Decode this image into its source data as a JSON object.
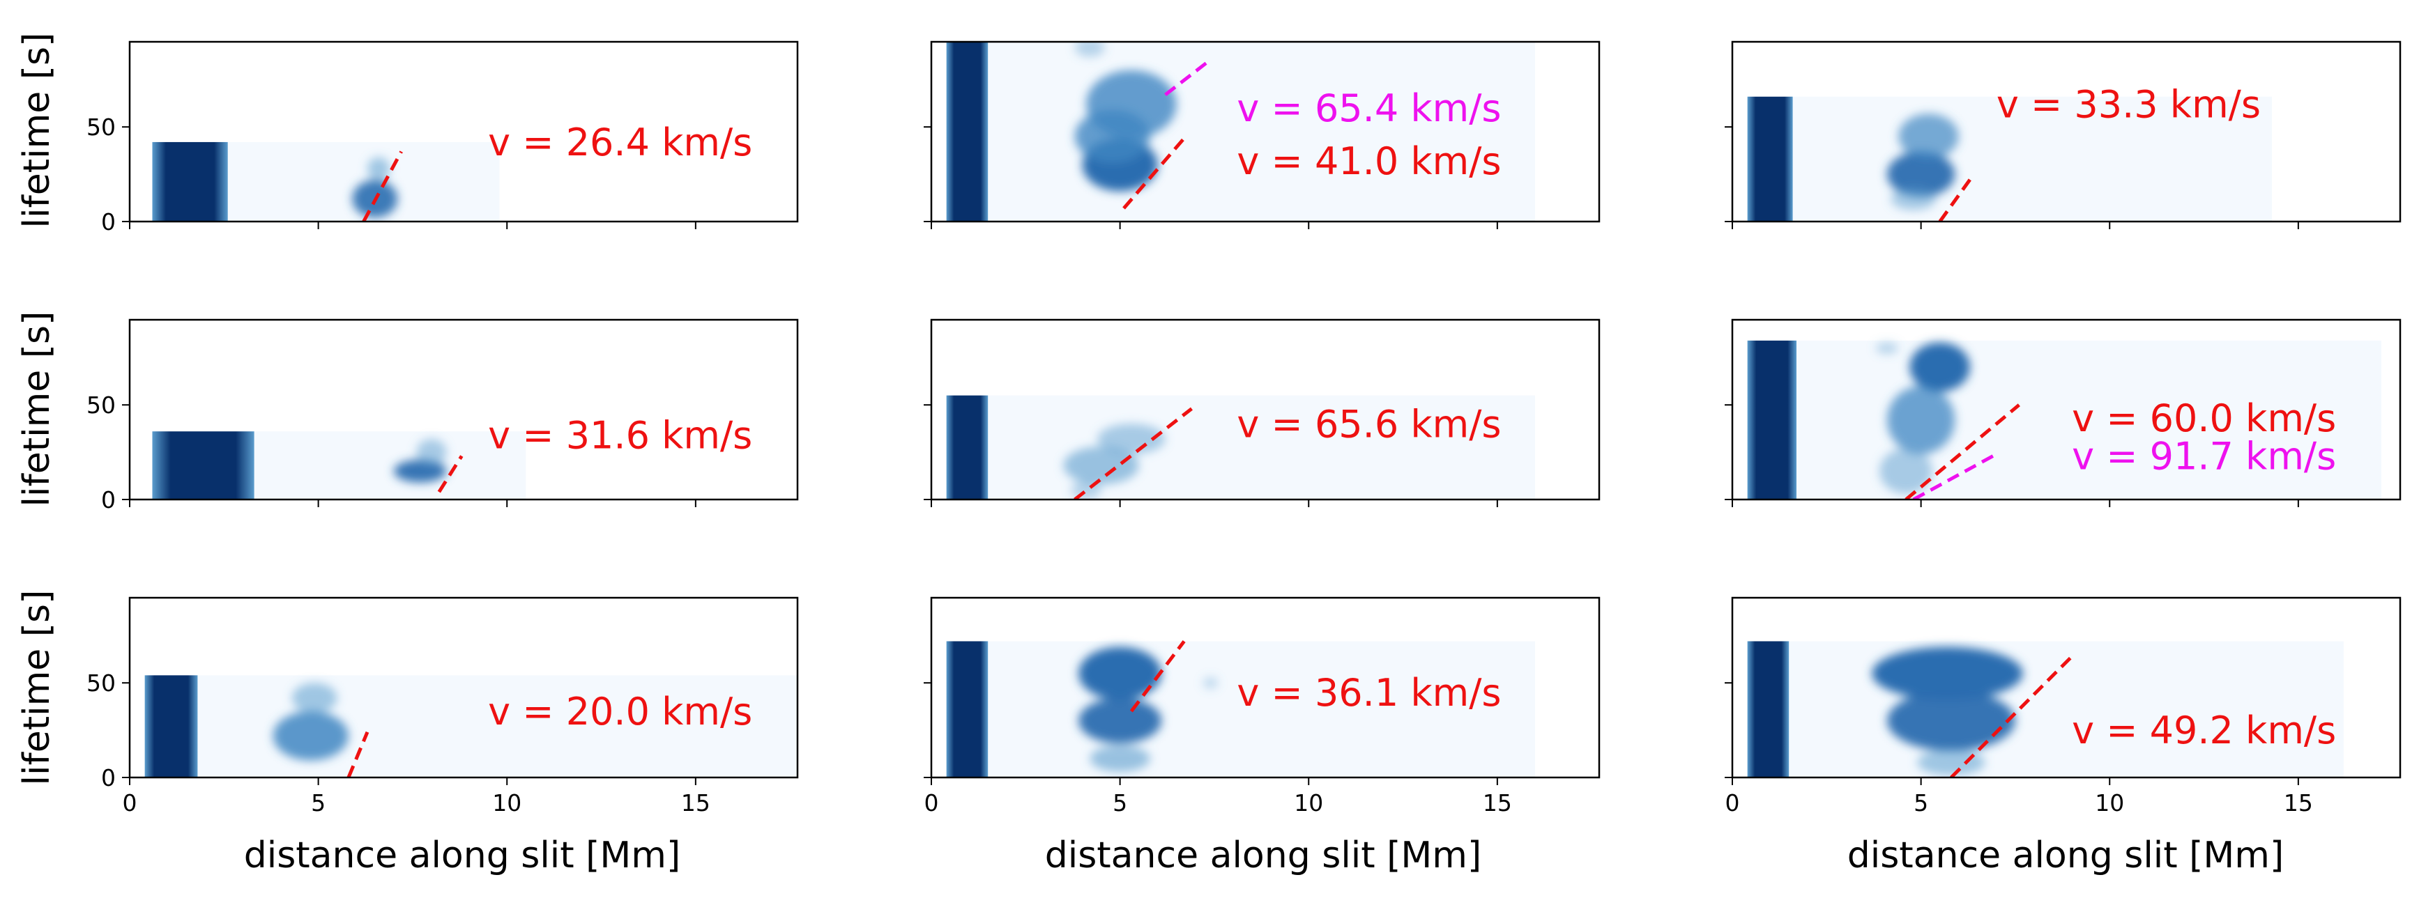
{
  "figure": {
    "xlabel": "distance along slit [Mm]",
    "ylabel": "lifetime [s]"
  },
  "colors": {
    "red": "#ee1111",
    "magenta": "#ee11ee",
    "cmap_light": "#f4f9fe",
    "cmap_mid": "#5a9ccd",
    "cmap_dark": "#08306b"
  },
  "chart_data": [
    {
      "type": "heatmap",
      "xlim": [
        0,
        17.7
      ],
      "ylim": [
        0,
        95
      ],
      "xticks": [
        0,
        5,
        10,
        15
      ],
      "yticks": [
        0,
        50
      ],
      "tick_labels_x": false,
      "tick_labels_y": true,
      "extent": [
        0.6,
        9.8,
        0,
        42
      ],
      "dark_band": [
        0.6,
        2.6
      ],
      "blobs": [
        [
          6.5,
          12,
          0.6,
          10,
          0.8
        ],
        [
          6.6,
          28,
          0.3,
          6,
          0.45
        ]
      ],
      "fits": [
        {
          "x": [
            6.2,
            7.2
          ],
          "y": [
            0,
            37
          ],
          "color": "red"
        }
      ],
      "annotations": [
        {
          "text": "v = 26.4 km/s",
          "x": 9.5,
          "y": 35,
          "color": "red"
        }
      ]
    },
    {
      "type": "heatmap",
      "xlim": [
        0,
        17.7
      ],
      "ylim": [
        0,
        95
      ],
      "xticks": [
        0,
        5,
        10,
        15
      ],
      "yticks": [
        0,
        50
      ],
      "tick_labels_x": false,
      "tick_labels_y": false,
      "extent": [
        0.4,
        16.0,
        0,
        95
      ],
      "dark_band": [
        0.4,
        1.5
      ],
      "blobs": [
        [
          5.0,
          30,
          1.0,
          14,
          0.95
        ],
        [
          5.3,
          62,
          1.2,
          18,
          0.7
        ],
        [
          4.8,
          45,
          1.0,
          14,
          0.7
        ],
        [
          4.2,
          92,
          0.4,
          5,
          0.3
        ]
      ],
      "fits": [
        {
          "x": [
            5.1,
            6.7
          ],
          "y": [
            7,
            44
          ],
          "color": "red"
        },
        {
          "x": [
            6.2,
            7.3
          ],
          "y": [
            67,
            84
          ],
          "color": "magenta"
        }
      ],
      "annotations": [
        {
          "text": "v = 65.4 km/s",
          "x": 8.1,
          "y": 53,
          "color": "magenta"
        },
        {
          "text": "v = 41.0 km/s",
          "x": 8.1,
          "y": 25,
          "color": "red"
        }
      ]
    },
    {
      "type": "heatmap",
      "xlim": [
        0,
        17.7
      ],
      "ylim": [
        0,
        95
      ],
      "xticks": [
        0,
        5,
        10,
        15
      ],
      "yticks": [
        0,
        50
      ],
      "tick_labels_x": false,
      "tick_labels_y": false,
      "extent": [
        0.4,
        14.3,
        0,
        66
      ],
      "dark_band": [
        0.4,
        1.6
      ],
      "blobs": [
        [
          5.0,
          25,
          0.9,
          12,
          0.85
        ],
        [
          5.2,
          45,
          0.8,
          12,
          0.6
        ],
        [
          4.8,
          12,
          0.6,
          6,
          0.4
        ]
      ],
      "fits": [
        {
          "x": [
            5.5,
            6.4
          ],
          "y": [
            0,
            25
          ],
          "color": "red"
        }
      ],
      "annotations": [
        {
          "text": "v = 33.3 km/s",
          "x": 7.0,
          "y": 55,
          "color": "red"
        }
      ]
    },
    {
      "type": "heatmap",
      "xlim": [
        0,
        17.7
      ],
      "ylim": [
        0,
        95
      ],
      "xticks": [
        0,
        5,
        10,
        15
      ],
      "yticks": [
        0,
        50
      ],
      "tick_labels_x": false,
      "tick_labels_y": true,
      "extent": [
        0.6,
        10.5,
        0,
        36
      ],
      "dark_band": [
        0.6,
        3.3
      ],
      "blobs": [
        [
          7.7,
          15,
          0.7,
          6,
          0.85
        ],
        [
          8.0,
          25,
          0.4,
          7,
          0.4
        ]
      ],
      "fits": [
        {
          "x": [
            8.2,
            8.8
          ],
          "y": [
            4,
            23
          ],
          "color": "red"
        }
      ],
      "annotations": [
        {
          "text": "v = 31.6 km/s",
          "x": 9.5,
          "y": 27,
          "color": "red"
        }
      ]
    },
    {
      "type": "heatmap",
      "xlim": [
        0,
        17.7
      ],
      "ylim": [
        0,
        95
      ],
      "xticks": [
        0,
        5,
        10,
        15
      ],
      "yticks": [
        0,
        50
      ],
      "tick_labels_x": false,
      "tick_labels_y": false,
      "extent": [
        0.4,
        16.0,
        0,
        55
      ],
      "dark_band": [
        0.4,
        1.5
      ],
      "blobs": [
        [
          4.5,
          18,
          1.0,
          10,
          0.5
        ],
        [
          5.3,
          32,
          0.9,
          8,
          0.4
        ],
        [
          4.1,
          5,
          0.4,
          5,
          0.3
        ]
      ],
      "fits": [
        {
          "x": [
            3.8,
            6.9
          ],
          "y": [
            0,
            48
          ],
          "color": "red"
        }
      ],
      "annotations": [
        {
          "text": "v = 65.6 km/s",
          "x": 8.1,
          "y": 33,
          "color": "red"
        }
      ]
    },
    {
      "type": "heatmap",
      "xlim": [
        0,
        17.7
      ],
      "ylim": [
        0,
        95
      ],
      "xticks": [
        0,
        5,
        10,
        15
      ],
      "yticks": [
        0,
        50
      ],
      "tick_labels_x": false,
      "tick_labels_y": false,
      "extent": [
        0.4,
        17.2,
        0,
        84
      ],
      "dark_band": [
        0.4,
        1.7
      ],
      "blobs": [
        [
          5.5,
          70,
          0.8,
          13,
          0.95
        ],
        [
          5.0,
          42,
          0.9,
          18,
          0.65
        ],
        [
          4.6,
          15,
          0.7,
          12,
          0.4
        ],
        [
          4.1,
          80,
          0.3,
          3,
          0.3
        ]
      ],
      "fits": [
        {
          "x": [
            4.6,
            7.6
          ],
          "y": [
            0,
            50
          ],
          "color": "red"
        },
        {
          "x": [
            4.8,
            7.0
          ],
          "y": [
            0,
            24
          ],
          "color": "magenta"
        }
      ],
      "annotations": [
        {
          "text": "v = 60.0 km/s",
          "x": 9.0,
          "y": 36,
          "color": "red"
        },
        {
          "text": "v = 91.7 km/s",
          "x": 9.0,
          "y": 16,
          "color": "magenta"
        }
      ]
    },
    {
      "type": "heatmap",
      "xlim": [
        0,
        17.7
      ],
      "ylim": [
        0,
        95
      ],
      "xticks": [
        0,
        5,
        10,
        15
      ],
      "yticks": [
        0,
        50
      ],
      "tick_labels_x": true,
      "tick_labels_y": true,
      "extent": [
        0.4,
        17.7,
        0,
        54
      ],
      "dark_band": [
        0.4,
        1.8
      ],
      "blobs": [
        [
          4.8,
          22,
          1.0,
          13,
          0.75
        ],
        [
          4.9,
          42,
          0.6,
          8,
          0.45
        ]
      ],
      "fits": [
        {
          "x": [
            5.8,
            6.3
          ],
          "y": [
            0,
            24
          ],
          "color": "red"
        }
      ],
      "annotations": [
        {
          "text": "v = 20.0 km/s",
          "x": 9.5,
          "y": 28,
          "color": "red"
        }
      ]
    },
    {
      "type": "heatmap",
      "xlim": [
        0,
        17.7
      ],
      "ylim": [
        0,
        95
      ],
      "xticks": [
        0,
        5,
        10,
        15
      ],
      "yticks": [
        0,
        50
      ],
      "tick_labels_x": true,
      "tick_labels_y": false,
      "extent": [
        0.4,
        16.0,
        0,
        72
      ],
      "dark_band": [
        0.4,
        1.5
      ],
      "blobs": [
        [
          5.0,
          55,
          1.1,
          14,
          0.95
        ],
        [
          5.0,
          30,
          1.1,
          12,
          0.85
        ],
        [
          5.0,
          10,
          0.8,
          7,
          0.5
        ],
        [
          7.4,
          50,
          0.2,
          3,
          0.25
        ]
      ],
      "fits": [
        {
          "x": [
            5.3,
            6.7
          ],
          "y": [
            35,
            72
          ],
          "color": "red"
        }
      ],
      "annotations": [
        {
          "text": "v = 36.1 km/s",
          "x": 8.1,
          "y": 38,
          "color": "red"
        }
      ]
    },
    {
      "type": "heatmap",
      "xlim": [
        0,
        17.7
      ],
      "ylim": [
        0,
        95
      ],
      "xticks": [
        0,
        5,
        10,
        15
      ],
      "yticks": [
        0,
        50
      ],
      "tick_labels_x": true,
      "tick_labels_y": false,
      "extent": [
        0.4,
        16.2,
        0,
        72
      ],
      "dark_band": [
        0.4,
        1.5
      ],
      "blobs": [
        [
          5.7,
          55,
          2.0,
          14,
          0.9
        ],
        [
          5.8,
          30,
          1.7,
          16,
          0.85
        ],
        [
          5.8,
          8,
          0.9,
          7,
          0.45
        ]
      ],
      "fits": [
        {
          "x": [
            5.8,
            9.0
          ],
          "y": [
            0,
            64
          ],
          "color": "red"
        }
      ],
      "annotations": [
        {
          "text": "v = 49.2 km/s",
          "x": 9.0,
          "y": 18,
          "color": "red"
        }
      ]
    }
  ]
}
